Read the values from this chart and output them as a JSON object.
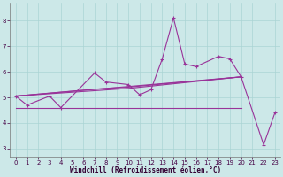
{
  "xlabel": "Windchill (Refroidissement éolien,°C)",
  "x": [
    0,
    1,
    2,
    3,
    4,
    5,
    6,
    7,
    8,
    9,
    10,
    11,
    12,
    13,
    14,
    15,
    16,
    17,
    18,
    19,
    20,
    21,
    22,
    23
  ],
  "color": "#993399",
  "bg_color": "#cce8e8",
  "grid_color": "#aad4d4",
  "ylim": [
    2.7,
    8.7
  ],
  "xlim": [
    -0.5,
    23.5
  ],
  "yticks": [
    3,
    4,
    5,
    6,
    7,
    8
  ],
  "xticks": [
    0,
    1,
    2,
    3,
    4,
    5,
    6,
    7,
    8,
    9,
    10,
    11,
    12,
    13,
    14,
    15,
    16,
    17,
    18,
    19,
    20,
    21,
    22,
    23
  ],
  "line_zigzag": {
    "x": [
      0,
      1,
      3,
      4,
      7,
      8,
      10,
      11,
      12,
      13,
      14,
      15,
      16,
      18,
      19,
      20,
      22,
      23
    ],
    "y": [
      5.05,
      4.7,
      5.05,
      4.6,
      5.95,
      5.6,
      5.5,
      5.1,
      5.3,
      6.5,
      8.1,
      6.3,
      6.2,
      6.6,
      6.5,
      5.8,
      3.15,
      4.4
    ]
  },
  "line_flat": {
    "x": [
      0,
      20
    ],
    "y": [
      4.6,
      4.6
    ]
  },
  "line_trend1": {
    "x": [
      0,
      20
    ],
    "y": [
      5.05,
      5.8
    ]
  },
  "line_trend2": {
    "x": [
      0,
      7,
      10,
      20
    ],
    "y": [
      5.05,
      5.32,
      5.4,
      5.8
    ]
  },
  "line_trend3": {
    "x": [
      0,
      10,
      20
    ],
    "y": [
      5.05,
      5.35,
      5.8
    ]
  },
  "tick_fontsize": 5,
  "xlabel_fontsize": 5.5
}
